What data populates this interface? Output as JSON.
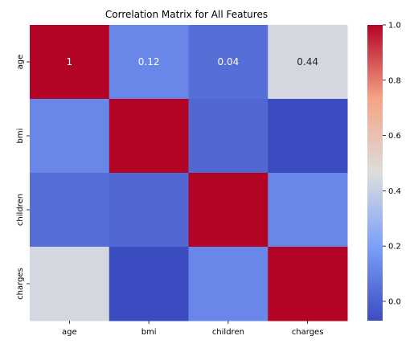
{
  "chart_data": {
    "type": "heatmap",
    "title": "Correlation Matrix for All Features",
    "x_categories": [
      "age",
      "bmi",
      "children",
      "charges"
    ],
    "y_categories": [
      "age",
      "bmi",
      "children",
      "charges"
    ],
    "values": [
      [
        1.0,
        0.12,
        0.04,
        0.44
      ],
      [
        0.12,
        1.0,
        0.02,
        -0.07
      ],
      [
        0.04,
        0.02,
        1.0,
        0.12
      ],
      [
        0.44,
        -0.07,
        0.12,
        1.0
      ]
    ],
    "annotations": [
      [
        "1",
        "0.12",
        "0.04",
        "0.44"
      ],
      [
        "",
        "",
        "",
        ""
      ],
      [
        "",
        "",
        "",
        ""
      ],
      [
        "",
        "",
        "",
        ""
      ]
    ],
    "colormap": "coolwarm",
    "vmin": -0.07,
    "vmax": 1.0,
    "colorbar_ticks": [
      "0.0",
      "0.2",
      "0.4",
      "0.6",
      "0.8",
      "1.0"
    ]
  }
}
